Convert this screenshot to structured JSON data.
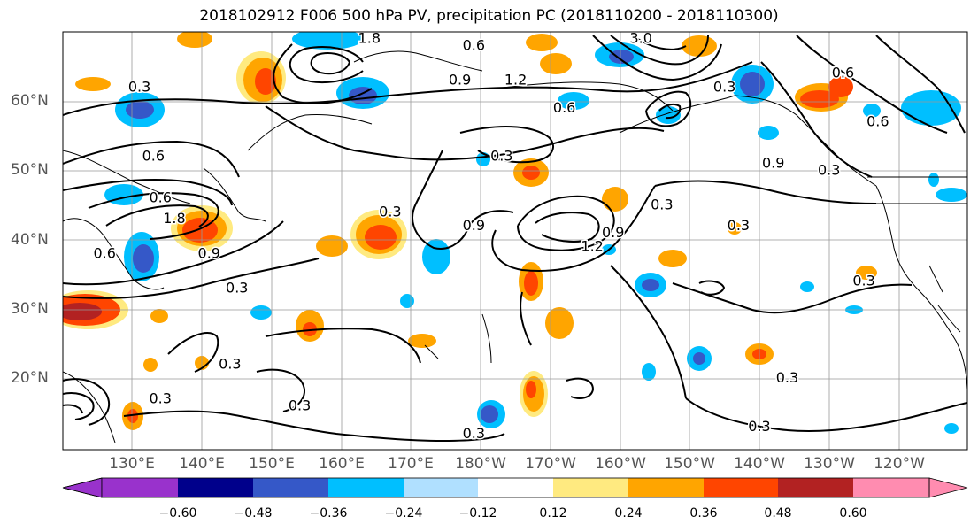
{
  "title": "2018102912 F006 500 hPa PV, precipitation PC (2018110200 - 2018110300)",
  "lat_labels": [
    "60°N",
    "50°N",
    "40°N",
    "30°N",
    "20°N"
  ],
  "lon_labels": [
    "130°E",
    "140°E",
    "150°E",
    "160°E",
    "170°E",
    "180°W",
    "170°W",
    "160°W",
    "150°W",
    "140°W",
    "130°W",
    "120°W"
  ],
  "contour_labels": [
    "0.3",
    "0.6",
    "0.9",
    "1.2",
    "1.8",
    "3.0"
  ],
  "colorbar": {
    "ticks": [
      "−0.60",
      "−0.48",
      "−0.36",
      "−0.24",
      "−0.12",
      "0.12",
      "0.24",
      "0.36",
      "0.48",
      "0.60"
    ],
    "colors": [
      "#9932cc",
      "#00008b",
      "#3558c8",
      "#00bfff",
      "#b0e0ff",
      "#ffffff",
      "#ffea80",
      "#ffa500",
      "#ff4500",
      "#b22222",
      "#ff8cb0"
    ]
  },
  "map_labels": [
    {
      "text": "0.3",
      "lon": 131,
      "lat": 62
    },
    {
      "text": "0.6",
      "lon": 133,
      "lat": 52
    },
    {
      "text": "0.6",
      "lon": 134,
      "lat": 46
    },
    {
      "text": "1.8",
      "lon": 136,
      "lat": 43
    },
    {
      "text": "0.6",
      "lon": 126,
      "lat": 38
    },
    {
      "text": "0.9",
      "lon": 141,
      "lat": 38
    },
    {
      "text": "0.3",
      "lon": 145,
      "lat": 33
    },
    {
      "text": "0.3",
      "lon": 167,
      "lat": 44
    },
    {
      "text": "0.3",
      "lon": 144,
      "lat": 22
    },
    {
      "text": "0.3",
      "lon": 134,
      "lat": 17
    },
    {
      "text": "0.3",
      "lon": 154,
      "lat": 16
    },
    {
      "text": "0.9",
      "lon": 177,
      "lat": 63
    },
    {
      "text": "1.2",
      "lon": 185,
      "lat": 63
    },
    {
      "text": "0.6",
      "lon": 192,
      "lat": 59
    },
    {
      "text": "0.6",
      "lon": 179,
      "lat": 68
    },
    {
      "text": "0.3",
      "lon": 183,
      "lat": 52
    },
    {
      "text": "0.9",
      "lon": 179,
      "lat": 42
    },
    {
      "text": "1.2",
      "lon": 196,
      "lat": 39
    },
    {
      "text": "0.9",
      "lon": 199,
      "lat": 41
    },
    {
      "text": "3.0",
      "lon": 203,
      "lat": 69
    },
    {
      "text": "0.3",
      "lon": 215,
      "lat": 62
    },
    {
      "text": "0.6",
      "lon": 232,
      "lat": 64
    },
    {
      "text": "0.9",
      "lon": 222,
      "lat": 51
    },
    {
      "text": "0.3",
      "lon": 230,
      "lat": 50
    },
    {
      "text": "0.6",
      "lon": 237,
      "lat": 57
    },
    {
      "text": "0.3",
      "lon": 206,
      "lat": 45
    },
    {
      "text": "0.3",
      "lon": 217,
      "lat": 42
    },
    {
      "text": "0.3",
      "lon": 235,
      "lat": 34
    },
    {
      "text": "0.3",
      "lon": 224,
      "lat": 20
    },
    {
      "text": "0.3",
      "lon": 220,
      "lat": 13
    },
    {
      "text": "0.3",
      "lon": 179,
      "lat": 12
    },
    {
      "text": "1.8",
      "lon": 164,
      "lat": 69
    }
  ]
}
